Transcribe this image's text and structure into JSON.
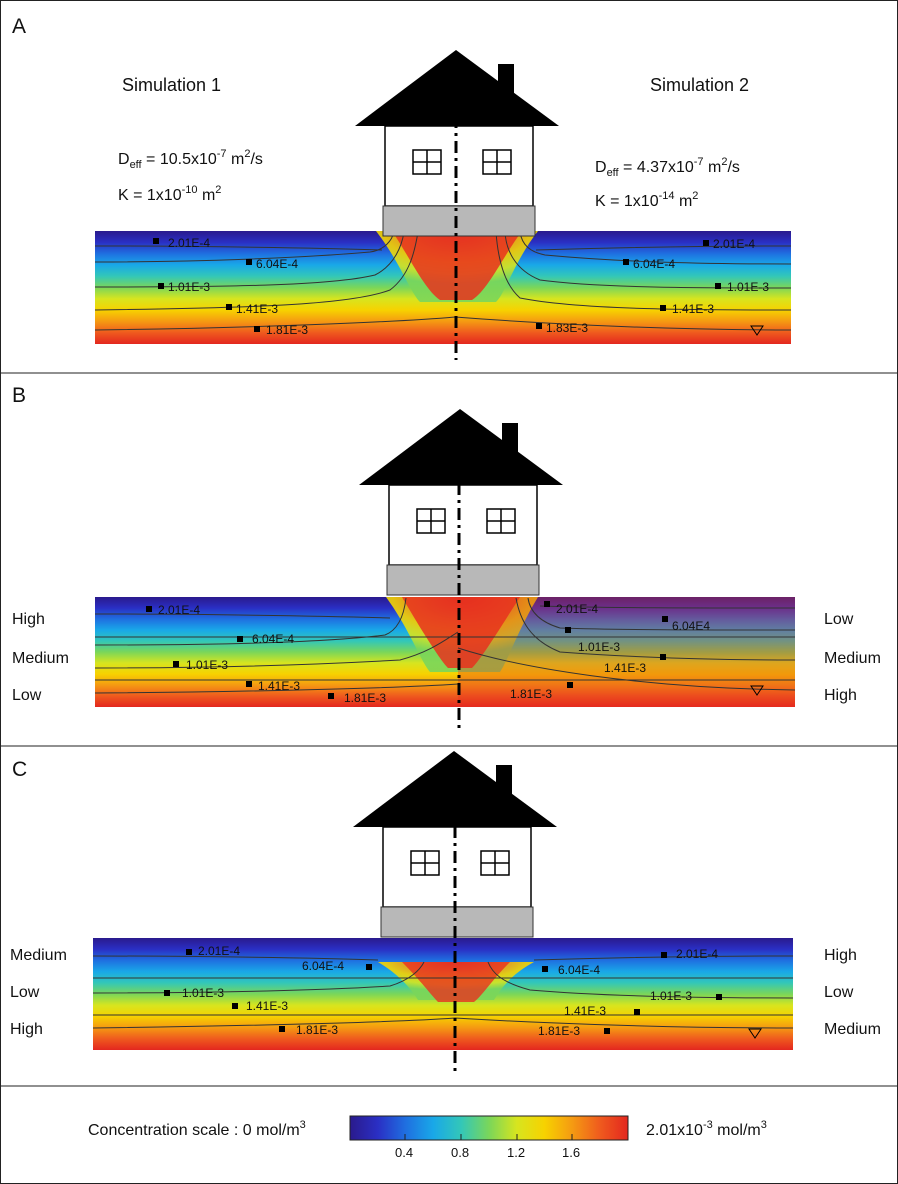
{
  "panels": [
    {
      "letter": "A",
      "sim_left": "Simulation 1",
      "sim_right": "Simulation 2",
      "deff_left": {
        "base": "10.5x10",
        "exp": "-7"
      },
      "k_left": {
        "base": "1x10",
        "exp": "-10"
      },
      "deff_right": {
        "base": "4.37x10",
        "exp": "-7"
      },
      "k_right": {
        "base": "1x10",
        "exp": "-14"
      },
      "contours_left": [
        "2.01E-4",
        "6.04E-4",
        "1.01E-3",
        "1.41E-3",
        "1.81E-3"
      ],
      "contours_right": [
        "2.01E-4",
        "6.04E-4",
        "1.01E-3",
        "1.41E-3",
        "1.83E-3"
      ]
    },
    {
      "letter": "B",
      "rows_left": [
        "High",
        "Medium",
        "Low"
      ],
      "rows_right": [
        "Low",
        "Medium",
        "High"
      ],
      "contours_left": [
        "2.01E-4",
        "6.04E-4",
        "1.01E-3",
        "1.41E-3",
        "1.81E-3"
      ],
      "contours_right": [
        "2.01E-4",
        "6.04E4",
        "1.01E-3",
        "1.41E-3",
        "1.81E-3"
      ]
    },
    {
      "letter": "C",
      "rows_left": [
        "Medium",
        "Low",
        "High"
      ],
      "rows_right": [
        "High",
        "Low",
        "Medium"
      ],
      "contours_left": [
        "2.01E-4",
        "6.04E-4",
        "1.01E-3",
        "1.41E-3",
        "1.81E-3"
      ],
      "contours_right": [
        "6.04E-4",
        "2.01E-4",
        "1.01E-3",
        "1.41E-3",
        "1.81E-3"
      ]
    }
  ],
  "scale": {
    "label": "Concentration scale :",
    "min_label": "0 mol/m",
    "min_sup": "3",
    "max_base": "2.01x10",
    "max_exp": "-3",
    "max_unit": " mol/m",
    "max_unit_sup": "3",
    "ticks": [
      "0.4",
      "0.8",
      "1.2",
      "1.6"
    ]
  },
  "colors": {
    "colormap": [
      "#2a1a8c",
      "#2a2fc4",
      "#1f6fe0",
      "#19a8e8",
      "#33c7b8",
      "#7ad65a",
      "#d7e51f",
      "#f7d200",
      "#f59a12",
      "#ef5a1e",
      "#e3271f"
    ],
    "house_body": "#ffffff",
    "roof": "#000000",
    "foundation": "#b8b8b8"
  }
}
